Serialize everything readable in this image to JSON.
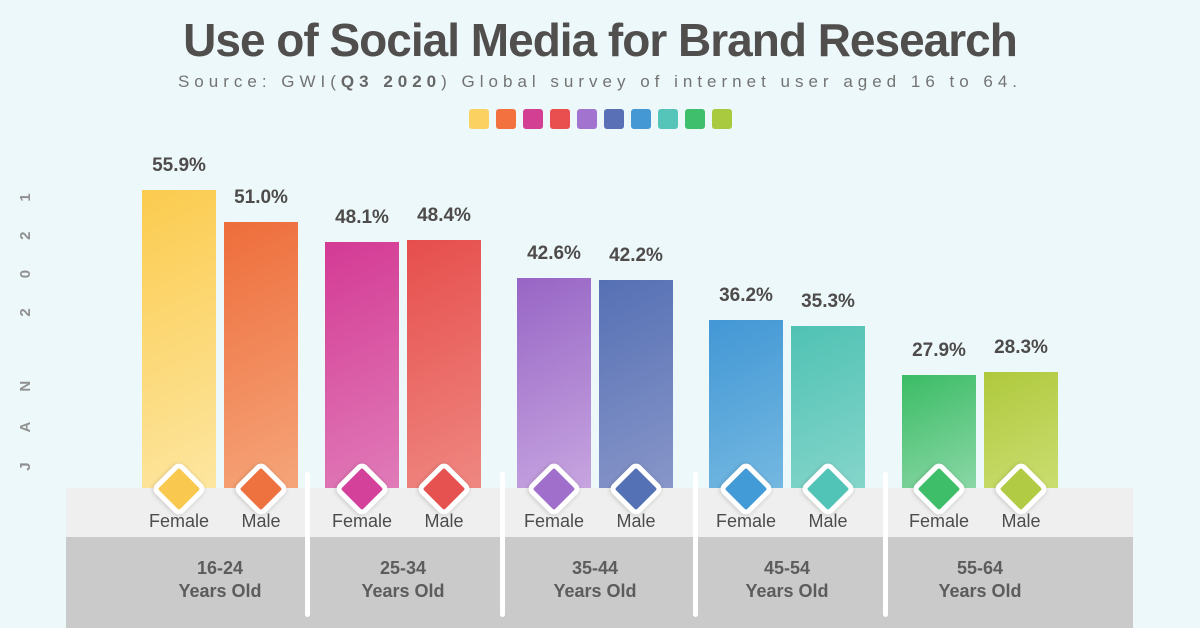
{
  "header": {
    "title": "Use of Social Media for Brand Research",
    "source_prefix": "Source: GWI(",
    "source_bold": "Q3 2020",
    "source_suffix": ") Global survey of internet user aged 16 to 64."
  },
  "side_label": "JAN 2021",
  "legend": {
    "colors": [
      "#FBD262",
      "#F3703F",
      "#D23F93",
      "#E94F4E",
      "#A274CF",
      "#5A70B6",
      "#4498D4",
      "#54C5B8",
      "#3FBE6B",
      "#A9C93F"
    ]
  },
  "palette": {
    "background": "#EDF8FA",
    "strip_light": "#F0EFEF",
    "strip_dark": "#CBCACA",
    "divider": "#FFFFFF",
    "title_text": "#514E4E"
  },
  "chart_data": {
    "type": "bar",
    "title": "Use of Social Media for Brand Research",
    "subtitle": "Source: GWI(Q3 2020) Global survey of internet user aged 16 to 64.",
    "unit": "%",
    "ylim": [
      0,
      60
    ],
    "grid": false,
    "legend_position": "top",
    "categories": [
      "16-24 Years Old",
      "25-34 Years Old",
      "35-44 Years Old",
      "45-54 Years Old",
      "55-64 Years Old"
    ],
    "series": [
      {
        "name": "Female",
        "values": [
          55.9,
          48.1,
          42.6,
          36.2,
          27.9
        ]
      },
      {
        "name": "Male",
        "values": [
          51.0,
          48.4,
          42.2,
          35.3,
          28.3
        ]
      }
    ],
    "groups": [
      {
        "age_line1": "16-24",
        "age_line2": "Years Old",
        "bars": [
          {
            "gender": "Female",
            "value": 55.9,
            "display": "55.9%",
            "color_start": "#FBCB4E",
            "color_end": "#FDE6A0",
            "diamond_color": "#F9C94F"
          },
          {
            "gender": "Male",
            "value": 51.0,
            "display": "51.0%",
            "color_start": "#EE6D3B",
            "color_end": "#F5A57A",
            "diamond_color": "#EE7140"
          }
        ]
      },
      {
        "age_line1": "25-34",
        "age_line2": "Years Old",
        "bars": [
          {
            "gender": "Female",
            "value": 48.1,
            "display": "48.1%",
            "color_start": "#D43A94",
            "color_end": "#E07BB8",
            "diamond_color": "#D4419A"
          },
          {
            "gender": "Male",
            "value": 48.4,
            "display": "48.4%",
            "color_start": "#E64E4C",
            "color_end": "#EF8781",
            "diamond_color": "#E6524F"
          }
        ]
      },
      {
        "age_line1": "35-44",
        "age_line2": "Years Old",
        "bars": [
          {
            "gender": "Female",
            "value": 42.6,
            "display": "42.6%",
            "color_start": "#9765C5",
            "color_end": "#C7A5E0",
            "diamond_color": "#A06FCC"
          },
          {
            "gender": "Male",
            "value": 42.2,
            "display": "42.2%",
            "color_start": "#5570B4",
            "color_end": "#8896C9",
            "diamond_color": "#5571B5"
          }
        ]
      },
      {
        "age_line1": "45-54",
        "age_line2": "Years Old",
        "bars": [
          {
            "gender": "Female",
            "value": 36.2,
            "display": "36.2%",
            "color_start": "#4297D5",
            "color_end": "#74B8E1",
            "diamond_color": "#429AD7"
          },
          {
            "gender": "Male",
            "value": 35.3,
            "display": "35.3%",
            "color_start": "#4FC2B4",
            "color_end": "#85D5CA",
            "diamond_color": "#52C4B7"
          }
        ]
      },
      {
        "age_line1": "55-64",
        "age_line2": "Years Old",
        "bars": [
          {
            "gender": "Female",
            "value": 27.9,
            "display": "27.9%",
            "color_start": "#3BBC65",
            "color_end": "#8AD7A6",
            "diamond_color": "#3EBE68"
          },
          {
            "gender": "Male",
            "value": 28.3,
            "display": "28.3%",
            "color_start": "#AFC93D",
            "color_end": "#CADD70",
            "diamond_color": "#B2CB45"
          }
        ]
      }
    ]
  }
}
